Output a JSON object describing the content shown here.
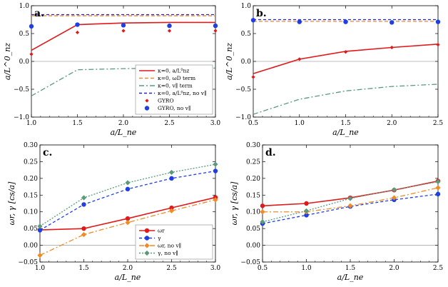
{
  "chart_data": [
    {
      "id": "a",
      "type": "line",
      "panel_label": "a.",
      "xlabel": "a/L_ne",
      "ylabel": "a/L^0_nz",
      "xlim": [
        1.0,
        3.0
      ],
      "ylim": [
        -1.0,
        1.0
      ],
      "xticks": [
        1.0,
        1.5,
        2.0,
        2.5,
        3.0
      ],
      "yticks": [
        -1.0,
        -0.5,
        0.0,
        0.5,
        1.0
      ],
      "tick_labels_x": [
        "1.0",
        "1.5",
        "2.0",
        "2.5",
        "3.0"
      ],
      "tick_labels_y": [
        "−1.0",
        "−0.5",
        "0.0",
        "0.5",
        "1.0"
      ],
      "series": [
        {
          "name": "κ=0, a/L⁰nz",
          "style": "solid",
          "color": "#e0191b",
          "x": [
            1.0,
            1.5,
            2.0,
            2.5,
            3.0
          ],
          "values": [
            0.2,
            0.66,
            0.69,
            0.7,
            0.7
          ]
        },
        {
          "name": "κ=0, ωD term",
          "style": "dash",
          "color": "#f08a24",
          "x": [
            1.0,
            3.0
          ],
          "values": [
            0.82,
            0.82
          ]
        },
        {
          "name": "κ=0, v∥ term",
          "style": "dashdot",
          "color": "#5a9a7a",
          "x": [
            1.0,
            1.5,
            2.0,
            2.5,
            3.0
          ],
          "values": [
            -0.62,
            -0.15,
            -0.13,
            -0.12,
            -0.12
          ]
        },
        {
          "name": "κ=0, a/L⁰nz, no v∥",
          "style": "dashblue",
          "color": "#2222cc",
          "x": [
            1.0,
            3.0
          ],
          "values": [
            0.84,
            0.84
          ]
        },
        {
          "name": "GYRO",
          "style": "diamond",
          "color": "#e0191b",
          "x": [
            1.0,
            1.5,
            2.0,
            2.5,
            3.0
          ],
          "values": [
            0.13,
            0.52,
            0.55,
            0.55,
            0.55
          ]
        },
        {
          "name": "GYRO, no v∥",
          "style": "circle",
          "color": "#1e3ee6",
          "x": [
            1.0,
            1.5,
            2.0,
            2.5,
            3.0
          ],
          "values": [
            0.63,
            0.66,
            0.65,
            0.64,
            0.64
          ]
        }
      ],
      "legend": "bottom-right"
    },
    {
      "id": "b",
      "type": "line",
      "panel_label": "b.",
      "xlabel": "a/L_ne",
      "ylabel": "a/L^0_nz",
      "xlim": [
        0.5,
        2.5
      ],
      "ylim": [
        -1.0,
        1.0
      ],
      "xticks": [
        0.5,
        1.0,
        1.5,
        2.0,
        2.5
      ],
      "yticks": [
        -1.0,
        -0.5,
        0.0,
        0.5,
        1.0
      ],
      "tick_labels_x": [
        "0.5",
        "1.0",
        "1.5",
        "2.0",
        "2.5"
      ],
      "tick_labels_y": [
        "−1.0",
        "−0.5",
        "0.0",
        "0.5",
        "1.0"
      ],
      "series": [
        {
          "name": "κ=0, a/L⁰nz",
          "style": "solid",
          "color": "#e0191b",
          "x": [
            0.5,
            1.0,
            1.5,
            2.0,
            2.5
          ],
          "values": [
            -0.22,
            0.04,
            0.18,
            0.25,
            0.31
          ]
        },
        {
          "name": "κ=0, ωD term",
          "style": "dash",
          "color": "#f08a24",
          "x": [
            0.5,
            2.5
          ],
          "values": [
            0.72,
            0.72
          ]
        },
        {
          "name": "κ=0, v∥ term",
          "style": "dashdot",
          "color": "#5a9a7a",
          "x": [
            0.5,
            1.0,
            1.5,
            2.0,
            2.5
          ],
          "values": [
            -0.95,
            -0.68,
            -0.53,
            -0.45,
            -0.41
          ]
        },
        {
          "name": "κ=0, a/L⁰nz, no v∥",
          "style": "dashblue",
          "color": "#2222cc",
          "x": [
            0.5,
            2.5
          ],
          "values": [
            0.75,
            0.75
          ]
        },
        {
          "name": "GYRO",
          "style": "diamond",
          "color": "#e0191b",
          "x": [
            0.5,
            1.0,
            1.5,
            2.0,
            2.5
          ],
          "values": [
            -0.28,
            0.04,
            0.17,
            0.25,
            0.3
          ]
        },
        {
          "name": "GYRO, no v∥",
          "style": "circle",
          "color": "#1e3ee6",
          "x": [
            0.5,
            1.0,
            1.5,
            2.0,
            2.5
          ],
          "values": [
            0.74,
            0.71,
            0.71,
            0.7,
            0.71
          ]
        }
      ]
    },
    {
      "id": "c",
      "type": "line",
      "panel_label": "c.",
      "xlabel": "a/L_ne",
      "ylabel": "ωr, γ [cs/a]",
      "xlim": [
        1.0,
        3.0
      ],
      "ylim": [
        -0.05,
        0.3
      ],
      "xticks": [
        1.0,
        1.5,
        2.0,
        2.5,
        3.0
      ],
      "yticks": [
        -0.05,
        0.0,
        0.05,
        0.1,
        0.15,
        0.2,
        0.25,
        0.3
      ],
      "tick_labels_x": [
        "1.0",
        "1.5",
        "2.0",
        "2.5",
        "3.0"
      ],
      "tick_labels_y": [
        "−0.05",
        "0.00",
        "0.05",
        "0.10",
        "0.15",
        "0.20",
        "0.25",
        "0.30"
      ],
      "series": [
        {
          "name": "ωr",
          "style": "solid-dot",
          "color": "#e0191b",
          "x": [
            1.0,
            1.5,
            2.0,
            2.5,
            3.0
          ],
          "values": [
            0.046,
            0.05,
            0.08,
            0.112,
            0.143
          ]
        },
        {
          "name": "γ",
          "style": "dash-dot-marker",
          "color": "#1e3ee6",
          "x": [
            1.0,
            1.5,
            2.0,
            2.5,
            3.0
          ],
          "values": [
            0.045,
            0.122,
            0.168,
            0.2,
            0.222
          ]
        },
        {
          "name": "ωr, no v∥",
          "style": "dashdot-diamond",
          "color": "#f08a24",
          "x": [
            1.0,
            1.5,
            2.0,
            2.5,
            3.0
          ],
          "values": [
            -0.03,
            0.032,
            0.068,
            0.103,
            0.136
          ]
        },
        {
          "name": "γ, no v∥",
          "style": "dotted-diamond",
          "color": "#5a9a7a",
          "x": [
            1.0,
            1.5,
            2.0,
            2.5,
            3.0
          ],
          "values": [
            0.057,
            0.142,
            0.187,
            0.218,
            0.242
          ]
        }
      ],
      "legend": "bottom-right"
    },
    {
      "id": "d",
      "type": "line",
      "panel_label": "d.",
      "xlabel": "a/L_ne",
      "ylabel": "ωr, γ [cs/a]",
      "xlim": [
        0.5,
        2.5
      ],
      "ylim": [
        -0.05,
        0.3
      ],
      "xticks": [
        0.5,
        1.0,
        1.5,
        2.0,
        2.5
      ],
      "yticks": [
        -0.05,
        0.0,
        0.05,
        0.1,
        0.15,
        0.2,
        0.25,
        0.3
      ],
      "tick_labels_x": [
        "0.5",
        "1.0",
        "1.5",
        "2.0",
        "2.5"
      ],
      "tick_labels_y": [
        "−0.05",
        "0.00",
        "0.05",
        "0.10",
        "0.15",
        "0.20",
        "0.25",
        "0.30"
      ],
      "series": [
        {
          "name": "ωr",
          "style": "solid-dot",
          "color": "#e0191b",
          "x": [
            0.5,
            1.0,
            1.5,
            2.0,
            2.5
          ],
          "values": [
            0.118,
            0.125,
            0.142,
            0.165,
            0.192
          ]
        },
        {
          "name": "γ",
          "style": "dash-dot-marker",
          "color": "#1e3ee6",
          "x": [
            0.5,
            1.0,
            1.5,
            2.0,
            2.5
          ],
          "values": [
            0.065,
            0.09,
            0.116,
            0.136,
            0.153
          ]
        },
        {
          "name": "ωr, no v∥",
          "style": "dashdot-diamond",
          "color": "#f08a24",
          "x": [
            0.5,
            1.0,
            1.5,
            2.0,
            2.5
          ],
          "values": [
            0.1,
            0.1,
            0.118,
            0.142,
            0.172
          ]
        },
        {
          "name": "γ, no v∥",
          "style": "dotted-diamond",
          "color": "#5a9a7a",
          "x": [
            0.5,
            1.0,
            1.5,
            2.0,
            2.5
          ],
          "values": [
            0.07,
            0.103,
            0.14,
            0.166,
            0.19
          ]
        }
      ]
    }
  ]
}
